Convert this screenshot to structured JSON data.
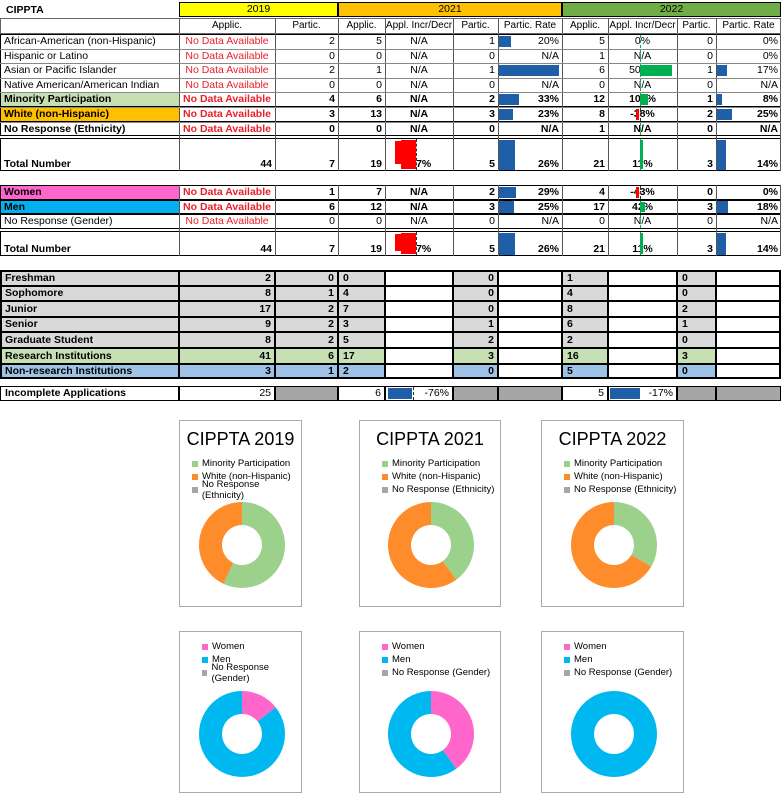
{
  "sheet_title": "CIPPTA",
  "years": [
    {
      "label": "2019",
      "color": "#ffff00"
    },
    {
      "label": "2021",
      "color": "#ffc000"
    },
    {
      "label": "2022",
      "color": "#70ad47"
    }
  ],
  "col_headers": {
    "y2019": [
      "Applic.",
      "Partic."
    ],
    "y2021": [
      "Applic.",
      "Appl. Incr/Decr",
      "Partic.",
      "Partic. Rate"
    ],
    "y2022": [
      "Applic.",
      "Appl. Incr/Decr",
      "Partic.",
      "Partic. Rate"
    ]
  },
  "colors": {
    "green_fill": "#c6e0b4",
    "orange_fill": "#ffc000",
    "pink_fill": "#ff66cc",
    "blue_fill": "#00b0f0",
    "grey_fill": "#d9d9d9",
    "bluegrey_fill": "#9dc3e6",
    "dark_grey": "#a6a6a6",
    "bar_blue": "#1f5fa8",
    "bar_red": "#ff0000",
    "bar_green": "#00b050",
    "no_data_red": "#e8202a",
    "chart_minority": "#9bd18b",
    "chart_white": "#ff8c2a",
    "chart_noresp": "#a6a6a6",
    "chart_women": "#ff66cc",
    "chart_men": "#00b8f0"
  },
  "ethnicity_rows": [
    {
      "label": "African-American (non-Hispanic)",
      "a19": "No Data Available",
      "p19": "2",
      "a21": "5",
      "i21": "N/A",
      "p21": "1",
      "r21": "20%",
      "r21v": 0.2,
      "a22": "5",
      "i22": "0%",
      "i22v": 0,
      "p22": "0",
      "r22": "0%",
      "r22v": 0,
      "bold": false,
      "fill": ""
    },
    {
      "label": "Hispanic or Latino",
      "a19": "No Data Available",
      "p19": "0",
      "a21": "0",
      "i21": "N/A",
      "p21": "0",
      "r21": "N/A",
      "r21v": 0,
      "a22": "1",
      "i22": "N/A",
      "i22v": 0,
      "p22": "0",
      "r22": "0%",
      "r22v": 0,
      "bold": false,
      "fill": ""
    },
    {
      "label": "Asian or Pacific Islander",
      "a19": "No Data Available",
      "p19": "2",
      "a21": "1",
      "i21": "N/A",
      "p21": "1",
      "r21": "100%",
      "r21v": 1.0,
      "a22": "6",
      "i22": "500%",
      "i22v": 5.0,
      "p22": "1",
      "r22": "17%",
      "r22v": 0.17,
      "bold": false,
      "fill": ""
    },
    {
      "label": "Native American/American Indian",
      "a19": "No Data Available",
      "p19": "0",
      "a21": "0",
      "i21": "N/A",
      "p21": "0",
      "r21": "N/A",
      "r21v": 0,
      "a22": "0",
      "i22": "N/A",
      "i22v": 0,
      "p22": "0",
      "r22": "N/A",
      "r22v": 0,
      "bold": false,
      "fill": ""
    },
    {
      "label": "Minority Participation",
      "a19": "No Data Available",
      "p19": "4",
      "a21": "6",
      "i21": "N/A",
      "p21": "2",
      "r21": "33%",
      "r21v": 0.33,
      "a22": "12",
      "i22": "100%",
      "i22v": 1.0,
      "p22": "1",
      "r22": "8%",
      "r22v": 0.08,
      "bold": true,
      "fill": "green"
    },
    {
      "label": "White (non-Hispanic)",
      "a19": "No Data Available",
      "p19": "3",
      "a21": "13",
      "i21": "N/A",
      "p21": "3",
      "r21": "23%",
      "r21v": 0.23,
      "a22": "8",
      "i22": "-38%",
      "i22v": -0.38,
      "p22": "2",
      "r22": "25%",
      "r22v": 0.25,
      "bold": true,
      "fill": "orange"
    },
    {
      "label": "No Response (Ethnicity)",
      "a19": "No Data Available",
      "p19": "0",
      "a21": "0",
      "i21": "N/A",
      "p21": "0",
      "r21": "N/A",
      "r21v": 0,
      "a22": "1",
      "i22": "N/A",
      "i22v": 0,
      "p22": "0",
      "r22": "N/A",
      "r22v": 0,
      "bold": true,
      "fill": ""
    }
  ],
  "total1": {
    "label": "Total Number",
    "a19": "44",
    "p19": "7",
    "a21": "19",
    "i21": "-57%",
    "i21v": -0.57,
    "p21": "5",
    "r21": "26%",
    "r21v": 0.26,
    "a22": "21",
    "i22": "11%",
    "i22v": 0.11,
    "p22": "3",
    "r22": "14%",
    "r22v": 0.14
  },
  "gender_rows": [
    {
      "label": "Women",
      "a19": "No Data Available",
      "p19": "1",
      "a21": "7",
      "i21": "N/A",
      "p21": "2",
      "r21": "29%",
      "r21v": 0.29,
      "a22": "4",
      "i22": "-43%",
      "i22v": -0.43,
      "p22": "0",
      "r22": "0%",
      "r22v": 0,
      "fill": "pink"
    },
    {
      "label": "Men",
      "a19": "No Data Available",
      "p19": "6",
      "a21": "12",
      "i21": "N/A",
      "p21": "3",
      "r21": "25%",
      "r21v": 0.25,
      "a22": "17",
      "i22": "42%",
      "i22v": 0.42,
      "p22": "3",
      "r22": "18%",
      "r22v": 0.18,
      "fill": "blue"
    },
    {
      "label": "No Response (Gender)",
      "a19": "No Data Available",
      "p19": "0",
      "a21": "0",
      "i21": "N/A",
      "p21": "0",
      "r21": "N/A",
      "r21v": 0,
      "a22": "0",
      "i22": "N/A",
      "i22v": 0,
      "p22": "0",
      "r22": "N/A",
      "r22v": 0,
      "fill": ""
    }
  ],
  "total2": {
    "label": "Total Number",
    "a19": "44",
    "p19": "7",
    "a21": "19",
    "i21": "-57%",
    "i21v": -0.57,
    "p21": "5",
    "r21": "26%",
    "r21v": 0.26,
    "a22": "21",
    "i22": "11%",
    "i22v": 0.11,
    "p22": "3",
    "r22": "14%",
    "r22v": 0.14
  },
  "class_rows": [
    {
      "label": "Freshman",
      "a19": "2",
      "p19": "0",
      "a21": "0",
      "p21": "0",
      "a22": "1",
      "p22": "0",
      "fill": "grey"
    },
    {
      "label": "Sophomore",
      "a19": "8",
      "p19": "1",
      "a21": "4",
      "p21": "0",
      "a22": "4",
      "p22": "0",
      "fill": "grey"
    },
    {
      "label": "Junior",
      "a19": "17",
      "p19": "2",
      "a21": "7",
      "p21": "0",
      "a22": "8",
      "p22": "2",
      "fill": "grey"
    },
    {
      "label": "Senior",
      "a19": "9",
      "p19": "2",
      "a21": "3",
      "p21": "1",
      "a22": "6",
      "p22": "1",
      "fill": "grey"
    },
    {
      "label": "Graduate Student",
      "a19": "8",
      "p19": "2",
      "a21": "5",
      "p21": "2",
      "a22": "2",
      "p22": "0",
      "fill": "grey"
    },
    {
      "label": "Research Institutions",
      "a19": "41",
      "p19": "6",
      "a21": "17",
      "p21": "3",
      "a22": "16",
      "p22": "3",
      "fill": "green"
    },
    {
      "label": "Non-research Institutions",
      "a19": "3",
      "p19": "1",
      "a21": "2",
      "p21": "0",
      "a22": "5",
      "p22": "0",
      "fill": "bluegrey"
    }
  ],
  "incomplete": {
    "label": "Incomplete Applications",
    "a19": "25",
    "a21": "6",
    "i21": "-76%",
    "i21v": -0.76,
    "a22": "5",
    "i22": "-17%",
    "i22v": -0.17
  },
  "chart_data": [
    {
      "type": "pie",
      "title": "CIPPTA 2019",
      "categories": [
        "Minority Participation",
        "White (non-Hispanic)",
        "No Response (Ethnicity)"
      ],
      "values": [
        4,
        3,
        0
      ]
    },
    {
      "type": "pie",
      "title": "CIPPTA 2021",
      "categories": [
        "Minority Participation",
        "White (non-Hispanic)",
        "No Response (Ethnicity)"
      ],
      "values": [
        2,
        3,
        0
      ]
    },
    {
      "type": "pie",
      "title": "CIPPTA 2022",
      "categories": [
        "Minority Participation",
        "White (non-Hispanic)",
        "No Response (Ethnicity)"
      ],
      "values": [
        1,
        2,
        0
      ]
    },
    {
      "type": "pie",
      "title": "",
      "categories": [
        "Women",
        "Men",
        "No Response (Gender)"
      ],
      "values": [
        1,
        6,
        0
      ]
    },
    {
      "type": "pie",
      "title": "",
      "categories": [
        "Women",
        "Men",
        "No Response (Gender)"
      ],
      "values": [
        2,
        3,
        0
      ]
    },
    {
      "type": "pie",
      "title": "",
      "categories": [
        "Women",
        "Men",
        "No Response (Gender)"
      ],
      "values": [
        0,
        3,
        0
      ]
    }
  ]
}
